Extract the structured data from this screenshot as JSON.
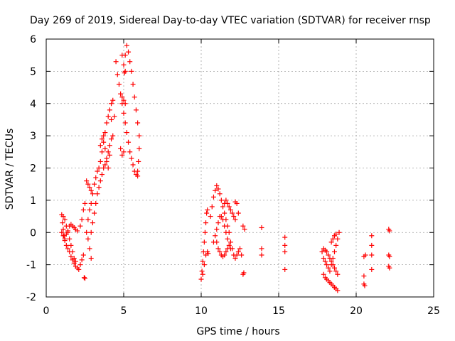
{
  "chart_data": {
    "type": "scatter",
    "title": "Day 269 of 2019, Sidereal Day-to-day VTEC variation (SDTVAR) for receiver rnsp",
    "xlabel": "GPS time / hours",
    "ylabel": "SDTVAR / TECUs",
    "xlim": [
      0,
      25
    ],
    "ylim": [
      -2,
      6
    ],
    "xticks": [
      0,
      5,
      10,
      15,
      20,
      25
    ],
    "yticks": [
      -2,
      -1,
      0,
      1,
      2,
      3,
      4,
      5,
      6
    ],
    "grid": true,
    "marker": "+",
    "color": "#ff0000",
    "series": [
      {
        "name": "SDTVAR",
        "points": [
          [
            1.0,
            0.55
          ],
          [
            1.05,
            0.3
          ],
          [
            1.1,
            0.1
          ],
          [
            1.15,
            -0.1
          ],
          [
            1.2,
            -0.25
          ],
          [
            1.3,
            -0.4
          ],
          [
            1.4,
            -0.5
          ],
          [
            1.5,
            -0.6
          ],
          [
            1.6,
            -0.75
          ],
          [
            1.7,
            -0.85
          ],
          [
            1.8,
            -0.95
          ],
          [
            1.9,
            -1.05
          ],
          [
            2.0,
            -1.1
          ],
          [
            2.1,
            -1.15
          ],
          [
            2.2,
            -1.0
          ],
          [
            2.3,
            -0.85
          ],
          [
            2.4,
            -0.7
          ],
          [
            1.0,
            0.0
          ],
          [
            1.1,
            -0.1
          ],
          [
            1.2,
            -0.2
          ],
          [
            1.3,
            -0.05
          ],
          [
            1.4,
            0.05
          ],
          [
            1.5,
            0.2
          ],
          [
            1.6,
            0.25
          ],
          [
            1.7,
            0.2
          ],
          [
            1.8,
            0.15
          ],
          [
            1.9,
            0.1
          ],
          [
            2.0,
            0.05
          ],
          [
            1.1,
            0.5
          ],
          [
            1.2,
            0.4
          ],
          [
            1.3,
            0.2
          ],
          [
            1.4,
            0.0
          ],
          [
            1.5,
            -0.2
          ],
          [
            1.6,
            -0.4
          ],
          [
            1.7,
            -0.6
          ],
          [
            1.8,
            -0.8
          ],
          [
            1.9,
            -0.9
          ],
          [
            2.2,
            0.2
          ],
          [
            2.3,
            0.4
          ],
          [
            2.4,
            0.7
          ],
          [
            2.5,
            0.9
          ],
          [
            2.45,
            -1.4
          ],
          [
            2.5,
            -1.42
          ],
          [
            2.6,
            0.0
          ],
          [
            2.7,
            -0.2
          ],
          [
            2.8,
            -0.5
          ],
          [
            2.9,
            -0.8
          ],
          [
            2.7,
            0.4
          ],
          [
            2.8,
            0.7
          ],
          [
            2.9,
            0.9
          ],
          [
            2.6,
            1.6
          ],
          [
            2.7,
            1.5
          ],
          [
            2.8,
            1.4
          ],
          [
            2.9,
            1.3
          ],
          [
            3.0,
            1.2
          ],
          [
            3.1,
            1.5
          ],
          [
            3.2,
            1.7
          ],
          [
            3.3,
            1.9
          ],
          [
            3.4,
            2.0
          ],
          [
            3.5,
            2.2
          ],
          [
            3.6,
            2.5
          ],
          [
            3.7,
            2.8
          ],
          [
            3.8,
            3.1
          ],
          [
            3.9,
            3.4
          ],
          [
            4.0,
            3.6
          ],
          [
            4.1,
            3.8
          ],
          [
            4.2,
            4.0
          ],
          [
            4.3,
            4.1
          ],
          [
            2.9,
            0.0
          ],
          [
            3.0,
            0.3
          ],
          [
            3.1,
            0.6
          ],
          [
            3.2,
            0.9
          ],
          [
            3.3,
            1.2
          ],
          [
            3.4,
            1.4
          ],
          [
            3.5,
            1.6
          ],
          [
            3.6,
            1.8
          ],
          [
            3.7,
            2.0
          ],
          [
            3.8,
            2.1
          ],
          [
            3.9,
            2.3
          ],
          [
            4.0,
            2.5
          ],
          [
            4.1,
            2.7
          ],
          [
            4.2,
            2.9
          ],
          [
            4.3,
            3.0
          ],
          [
            3.5,
            2.7
          ],
          [
            3.6,
            2.9
          ],
          [
            3.7,
            3.0
          ],
          [
            3.8,
            2.6
          ],
          [
            3.9,
            2.2
          ],
          [
            4.0,
            2.0
          ],
          [
            4.1,
            2.4
          ],
          [
            4.2,
            3.5
          ],
          [
            4.4,
            3.6
          ],
          [
            4.5,
            5.3
          ],
          [
            4.6,
            4.9
          ],
          [
            4.7,
            4.6
          ],
          [
            4.8,
            4.3
          ],
          [
            4.9,
            4.0
          ],
          [
            5.0,
            3.7
          ],
          [
            5.1,
            3.4
          ],
          [
            5.2,
            3.1
          ],
          [
            5.3,
            2.8
          ],
          [
            5.4,
            2.5
          ],
          [
            5.5,
            2.3
          ],
          [
            5.6,
            2.1
          ],
          [
            5.7,
            1.9
          ],
          [
            5.8,
            1.8
          ],
          [
            5.9,
            1.75
          ],
          [
            4.9,
            5.5
          ],
          [
            5.0,
            5.2
          ],
          [
            5.1,
            5.5
          ],
          [
            5.2,
            5.8
          ],
          [
            5.3,
            5.6
          ],
          [
            5.4,
            5.3
          ],
          [
            5.5,
            5.0
          ],
          [
            5.6,
            4.6
          ],
          [
            5.7,
            4.2
          ],
          [
            5.8,
            3.8
          ],
          [
            5.9,
            3.4
          ],
          [
            6.0,
            3.0
          ],
          [
            6.0,
            2.6
          ],
          [
            5.95,
            2.2
          ],
          [
            5.9,
            1.9
          ],
          [
            4.8,
            2.6
          ],
          [
            4.9,
            2.4
          ],
          [
            5.0,
            2.5
          ],
          [
            5.1,
            4.0
          ],
          [
            5.0,
            4.1
          ],
          [
            4.9,
            4.2
          ],
          [
            5.1,
            5.0
          ],
          [
            5.05,
            4.95
          ],
          [
            10.0,
            -1.45
          ],
          [
            10.05,
            -1.2
          ],
          [
            10.1,
            -0.9
          ],
          [
            10.15,
            -0.6
          ],
          [
            10.2,
            -0.3
          ],
          [
            10.25,
            0.0
          ],
          [
            10.3,
            0.3
          ],
          [
            10.35,
            0.6
          ],
          [
            10.4,
            0.7
          ],
          [
            10.1,
            -1.3
          ],
          [
            10.2,
            -1.0
          ],
          [
            10.3,
            -0.7
          ],
          [
            10.4,
            -0.6
          ],
          [
            10.45,
            -0.65
          ],
          [
            10.6,
            0.5
          ],
          [
            10.7,
            0.8
          ],
          [
            10.8,
            1.1
          ],
          [
            10.9,
            1.3
          ],
          [
            11.0,
            1.45
          ],
          [
            11.1,
            1.35
          ],
          [
            11.2,
            1.2
          ],
          [
            11.3,
            1.0
          ],
          [
            11.4,
            0.8
          ],
          [
            11.5,
            0.6
          ],
          [
            11.6,
            0.4
          ],
          [
            11.7,
            0.2
          ],
          [
            11.8,
            0.0
          ],
          [
            10.8,
            -0.3
          ],
          [
            10.9,
            -0.1
          ],
          [
            11.0,
            0.1
          ],
          [
            11.1,
            0.3
          ],
          [
            11.2,
            0.5
          ],
          [
            11.3,
            0.5
          ],
          [
            11.4,
            0.4
          ],
          [
            11.5,
            0.2
          ],
          [
            11.6,
            0.0
          ],
          [
            11.7,
            -0.2
          ],
          [
            11.8,
            -0.4
          ],
          [
            11.9,
            -0.5
          ],
          [
            11.0,
            -0.3
          ],
          [
            11.1,
            -0.5
          ],
          [
            11.2,
            -0.6
          ],
          [
            11.3,
            -0.7
          ],
          [
            11.4,
            -0.75
          ],
          [
            11.5,
            -0.7
          ],
          [
            11.6,
            -0.6
          ],
          [
            11.7,
            -0.5
          ],
          [
            11.5,
            0.9
          ],
          [
            11.6,
            1.0
          ],
          [
            11.7,
            0.9
          ],
          [
            11.8,
            0.8
          ],
          [
            11.9,
            0.7
          ],
          [
            12.0,
            0.6
          ],
          [
            12.1,
            0.5
          ],
          [
            12.2,
            0.4
          ],
          [
            11.9,
            -0.3
          ],
          [
            12.0,
            -0.5
          ],
          [
            12.1,
            -0.7
          ],
          [
            12.2,
            -0.8
          ],
          [
            12.3,
            -0.7
          ],
          [
            12.4,
            -0.6
          ],
          [
            12.5,
            -0.5
          ],
          [
            12.6,
            -0.7
          ],
          [
            12.2,
            0.95
          ],
          [
            12.3,
            0.9
          ],
          [
            12.4,
            0.6
          ],
          [
            12.7,
            0.2
          ],
          [
            12.8,
            0.1
          ],
          [
            12.7,
            -1.3
          ],
          [
            12.75,
            -1.25
          ],
          [
            13.9,
            0.15
          ],
          [
            13.9,
            -0.5
          ],
          [
            13.9,
            -0.7
          ],
          [
            15.4,
            -0.15
          ],
          [
            15.4,
            -0.4
          ],
          [
            15.4,
            -0.6
          ],
          [
            15.4,
            -1.15
          ],
          [
            17.8,
            -0.6
          ],
          [
            17.9,
            -0.8
          ],
          [
            18.0,
            -0.9
          ],
          [
            18.1,
            -1.0
          ],
          [
            18.2,
            -1.1
          ],
          [
            18.3,
            -1.2
          ],
          [
            18.4,
            -1.0
          ],
          [
            18.5,
            -0.8
          ],
          [
            18.6,
            -0.6
          ],
          [
            18.7,
            -0.4
          ],
          [
            18.8,
            -0.2
          ],
          [
            18.9,
            0.0
          ],
          [
            17.9,
            -0.5
          ],
          [
            18.0,
            -0.55
          ],
          [
            18.1,
            -0.6
          ],
          [
            18.2,
            -0.7
          ],
          [
            18.3,
            -0.8
          ],
          [
            18.4,
            -0.9
          ],
          [
            18.5,
            -1.0
          ],
          [
            18.6,
            -1.1
          ],
          [
            18.7,
            -1.2
          ],
          [
            18.8,
            -1.3
          ],
          [
            17.9,
            -1.3
          ],
          [
            18.0,
            -1.4
          ],
          [
            18.1,
            -1.45
          ],
          [
            18.2,
            -1.5
          ],
          [
            18.3,
            -1.55
          ],
          [
            18.4,
            -1.6
          ],
          [
            18.5,
            -1.65
          ],
          [
            18.6,
            -1.7
          ],
          [
            18.7,
            -1.75
          ],
          [
            18.8,
            -1.8
          ],
          [
            18.4,
            -0.3
          ],
          [
            18.5,
            -0.2
          ],
          [
            18.6,
            -0.1
          ],
          [
            18.7,
            -0.05
          ],
          [
            20.5,
            -0.75
          ],
          [
            20.6,
            -0.7
          ],
          [
            20.5,
            -1.35
          ],
          [
            20.5,
            -1.6
          ],
          [
            20.55,
            -1.65
          ],
          [
            21.0,
            -0.1
          ],
          [
            21.0,
            -0.4
          ],
          [
            21.0,
            -0.7
          ],
          [
            21.0,
            -1.15
          ],
          [
            22.1,
            0.1
          ],
          [
            22.15,
            0.05
          ],
          [
            22.1,
            -0.7
          ],
          [
            22.15,
            -0.75
          ],
          [
            22.1,
            -1.05
          ],
          [
            22.15,
            -1.1
          ]
        ]
      }
    ]
  }
}
